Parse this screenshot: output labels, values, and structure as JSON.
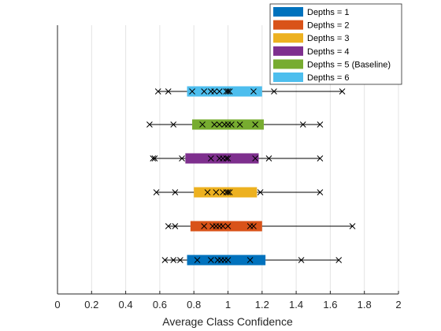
{
  "chart_data": {
    "type": "box",
    "title": "",
    "xlabel": "Average Class Confidence",
    "ylabel": "",
    "xlim": [
      0,
      2
    ],
    "xticks": [
      0,
      0.2,
      0.4,
      0.6,
      0.8,
      1,
      1.2,
      1.4,
      1.6,
      1.8,
      2
    ],
    "xtick_labels": [
      "0",
      "0.2",
      "0.4",
      "0.6",
      "0.8",
      "1",
      "1.2",
      "1.4",
      "1.6",
      "1.8",
      "2"
    ],
    "grid": "vertical",
    "legend_position": "top-right",
    "series": [
      {
        "name": "Depths = 1",
        "color": "#0072BD",
        "q1": 0.76,
        "q3": 1.22,
        "whisker_min": 0.63,
        "whisker_max": 1.65,
        "points": [
          0.63,
          0.68,
          0.72,
          0.82,
          0.9,
          0.94,
          0.96,
          0.98,
          1.0,
          1.13,
          1.43,
          1.65
        ]
      },
      {
        "name": "Depths = 2",
        "color": "#D95319",
        "q1": 0.78,
        "q3": 1.2,
        "whisker_min": 0.65,
        "whisker_max": 1.73,
        "points": [
          0.65,
          0.69,
          0.86,
          0.91,
          0.93,
          0.95,
          0.97,
          1.0,
          1.13,
          1.15,
          1.73
        ]
      },
      {
        "name": "Depths = 3",
        "color": "#EDB120",
        "q1": 0.8,
        "q3": 1.17,
        "whisker_min": 0.58,
        "whisker_max": 1.54,
        "points": [
          0.58,
          0.69,
          0.88,
          0.93,
          0.97,
          0.99,
          1.0,
          1.01,
          1.19,
          1.54
        ]
      },
      {
        "name": "Depths = 4",
        "color": "#7E2F8E",
        "q1": 0.75,
        "q3": 1.18,
        "whisker_min": 0.56,
        "whisker_max": 1.54,
        "points": [
          0.56,
          0.57,
          0.73,
          0.9,
          0.95,
          0.97,
          0.99,
          1.0,
          1.16,
          1.24,
          1.54
        ]
      },
      {
        "name": "Depths = 5 (Baseline)",
        "color": "#77AC30",
        "q1": 0.79,
        "q3": 1.21,
        "whisker_min": 0.54,
        "whisker_max": 1.54,
        "points": [
          0.54,
          0.68,
          0.85,
          0.92,
          0.95,
          0.98,
          1.0,
          1.02,
          1.07,
          1.16,
          1.44,
          1.54
        ]
      },
      {
        "name": "Depths = 6",
        "color": "#4DBEEE",
        "q1": 0.76,
        "q3": 1.2,
        "whisker_min": 0.59,
        "whisker_max": 1.67,
        "points": [
          0.59,
          0.65,
          0.79,
          0.86,
          0.9,
          0.92,
          0.95,
          0.99,
          1.0,
          1.01,
          1.15,
          1.27,
          1.67
        ]
      }
    ]
  }
}
